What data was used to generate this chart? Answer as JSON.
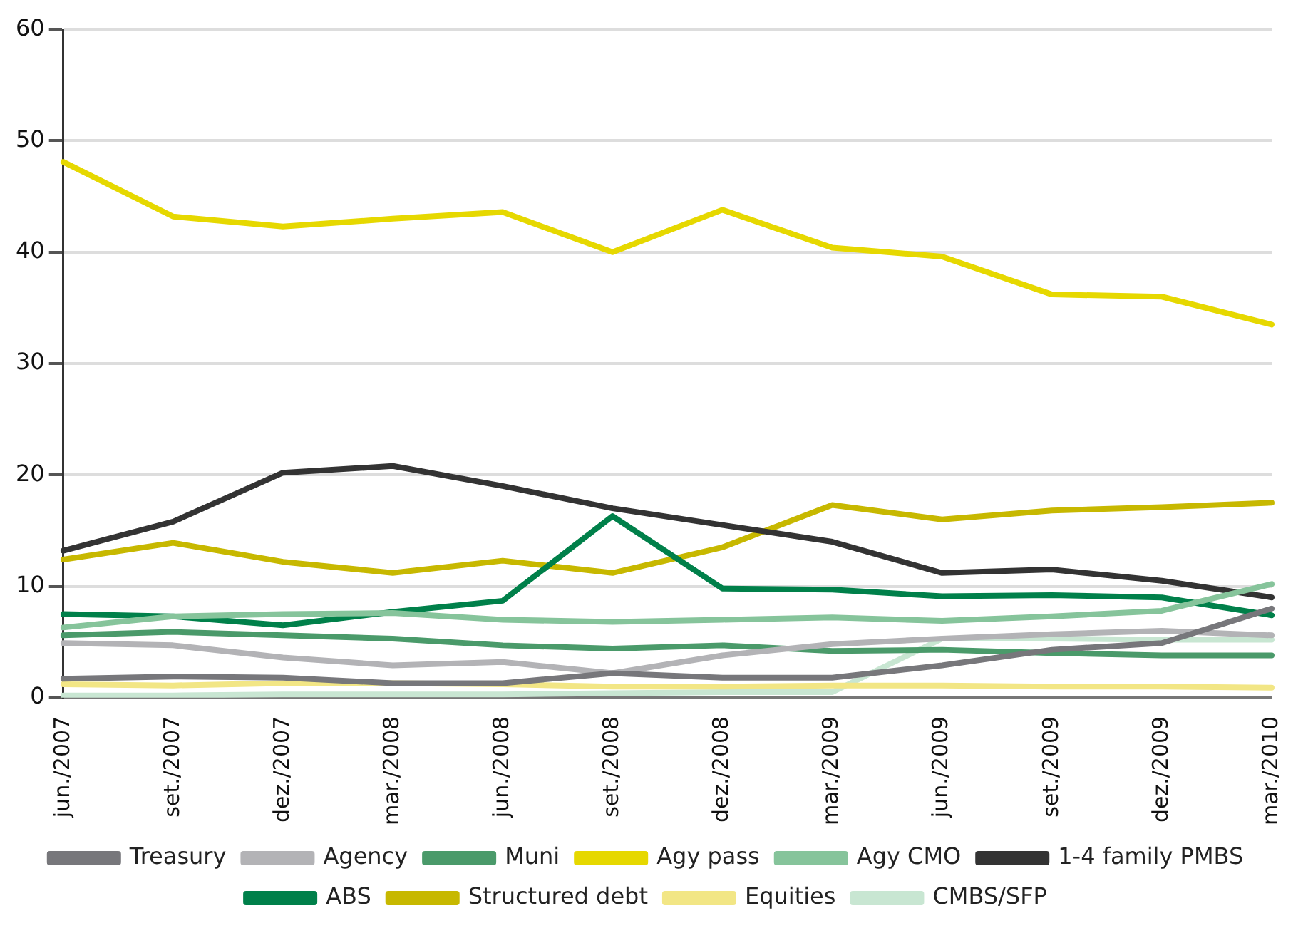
{
  "chart_data": {
    "type": "line",
    "categories": [
      "jun./2007",
      "set./2007",
      "dez./2007",
      "mar./2008",
      "jun./2008",
      "set./2008",
      "dez./2008",
      "mar./2009",
      "jun./2009",
      "set./2009",
      "dez./2009",
      "mar./2010"
    ],
    "ylim": [
      0,
      60
    ],
    "yticks": [
      0,
      10,
      20,
      30,
      40,
      50,
      60
    ],
    "grid": "y",
    "legend": "bottom",
    "marker": "none",
    "line_style": "solid",
    "series": [
      {
        "name": "Treasury",
        "color": "#77777b",
        "values": [
          1.7,
          1.9,
          1.8,
          1.3,
          1.3,
          2.2,
          1.8,
          1.8,
          2.9,
          4.3,
          4.9,
          8.0
        ]
      },
      {
        "name": "Agency",
        "color": "#b3b3b6",
        "values": [
          4.9,
          4.7,
          3.6,
          2.9,
          3.2,
          2.2,
          3.8,
          4.8,
          5.3,
          5.7,
          6.0,
          5.6
        ]
      },
      {
        "name": "Muni",
        "color": "#4a9a6a",
        "values": [
          5.6,
          5.9,
          5.6,
          5.3,
          4.7,
          4.4,
          4.7,
          4.2,
          4.3,
          4.0,
          3.8,
          3.8
        ]
      },
      {
        "name": "Agy pass",
        "color": "#e6d800",
        "values": [
          48.1,
          43.2,
          42.3,
          43.0,
          43.6,
          40.0,
          43.8,
          40.4,
          39.6,
          36.2,
          36.0,
          33.5
        ]
      },
      {
        "name": "Agy CMO",
        "color": "#86c49b",
        "values": [
          6.3,
          7.3,
          7.5,
          7.6,
          7.0,
          6.8,
          7.0,
          7.2,
          6.9,
          7.3,
          7.8,
          10.2
        ]
      },
      {
        "name": "1-4 family PMBS",
        "color": "#333333",
        "values": [
          13.2,
          15.8,
          20.2,
          20.8,
          19.0,
          17.0,
          15.5,
          14.0,
          11.2,
          11.5,
          10.5,
          9.0
        ]
      },
      {
        "name": "ABS",
        "color": "#00804a",
        "values": [
          7.5,
          7.3,
          6.5,
          7.7,
          8.7,
          16.3,
          9.8,
          9.7,
          9.1,
          9.2,
          9.0,
          7.4
        ]
      },
      {
        "name": "Structured debt",
        "color": "#c7b800",
        "values": [
          12.4,
          13.9,
          12.2,
          11.2,
          12.3,
          11.2,
          13.5,
          17.3,
          16.0,
          16.8,
          17.1,
          17.5
        ]
      },
      {
        "name": "Equities",
        "color": "#f2e685",
        "values": [
          1.2,
          1.1,
          1.3,
          1.3,
          1.2,
          1.0,
          1.0,
          1.1,
          1.1,
          1.0,
          1.0,
          0.9
        ]
      },
      {
        "name": "CMBS/SFP",
        "color": "#c8e6d2",
        "values": [
          0.2,
          0.2,
          0.3,
          0.3,
          0.3,
          0.4,
          0.5,
          0.5,
          5.3,
          5.3,
          5.2,
          5.2
        ]
      }
    ]
  }
}
